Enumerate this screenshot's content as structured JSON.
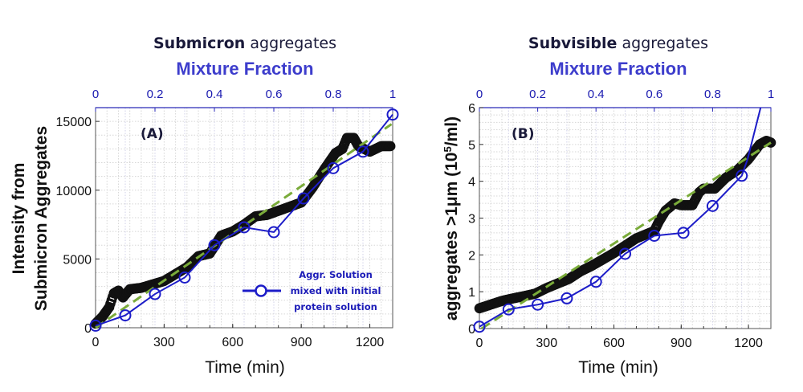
{
  "chart_data": [
    {
      "type": "line",
      "panel_label": "(A)",
      "title": "Submicron aggregates",
      "title_bold_part": "Submicron",
      "title_rest": "aggregates",
      "top_axis_label": "Mixture Fraction",
      "top_ticks": [
        "0",
        "0.2",
        "0.4",
        "0.6",
        "0.8",
        "1"
      ],
      "xlabel": "Time (min)",
      "ylabel_lines": [
        "Intensity from",
        "Submicron Aggregates"
      ],
      "xlim": [
        0,
        1300
      ],
      "ylim": [
        0,
        16000
      ],
      "top_xlim": [
        0,
        1
      ],
      "x_ticks": [
        "0",
        "300",
        "600",
        "900",
        "1200"
      ],
      "y_ticks": [
        "0",
        "5000",
        "10000",
        "15000"
      ],
      "grid": true,
      "legend_position": "bottom-right",
      "legend_lines": [
        "Aggr. Solution",
        "mixed with initial",
        "protein solution"
      ],
      "series": [
        {
          "axis": "bottom",
          "style": "black-circles",
          "color": "#111111",
          "x": [
            0,
            30,
            60,
            80,
            100,
            120,
            150,
            200,
            300,
            400,
            450,
            500,
            550,
            600,
            650,
            700,
            750,
            800,
            850,
            900,
            950,
            1000,
            1050,
            1080,
            1100,
            1130,
            1150,
            1200,
            1250,
            1290
          ],
          "y": [
            300,
            800,
            1500,
            2500,
            2700,
            2200,
            2800,
            2900,
            3400,
            4400,
            5200,
            5400,
            6700,
            7000,
            7500,
            8100,
            8200,
            8500,
            8800,
            9100,
            10200,
            11500,
            12700,
            13000,
            13800,
            13800,
            13200,
            12800,
            13200,
            13200
          ]
        },
        {
          "axis": "bottom",
          "style": "green-dashed-fit",
          "color": "#7aab3a",
          "x": [
            0,
            1295
          ],
          "y": [
            0,
            14800
          ]
        },
        {
          "name": "Aggr. Solution mixed with initial protein solution",
          "axis": "top",
          "style": "blue-line-open-circles",
          "color": "#1c1cc8",
          "x": [
            0,
            0.1,
            0.2,
            0.3,
            0.4,
            0.5,
            0.6,
            0.7,
            0.8,
            0.9,
            1.0
          ],
          "y": [
            150,
            900,
            2450,
            3650,
            6000,
            7300,
            6950,
            9400,
            11600,
            12800,
            15500
          ]
        }
      ]
    },
    {
      "type": "line",
      "panel_label": "(B)",
      "title": "Subvisible aggregates",
      "title_bold_part": "Subvisible",
      "title_rest": "aggregates",
      "top_axis_label": "Mixture Fraction",
      "top_ticks": [
        "0",
        "0.2",
        "0.4",
        "0.6",
        "0.8",
        "1"
      ],
      "xlabel": "Time (min)",
      "ylabel": "aggregates >1μm  (10^5/ml)",
      "ylabel_main": "aggregates >1μm  (10",
      "ylabel_sup": "5",
      "ylabel_end": "/ml)",
      "xlim": [
        0,
        1300
      ],
      "ylim": [
        0,
        6
      ],
      "top_xlim": [
        0,
        1
      ],
      "x_ticks": [
        "0",
        "300",
        "600",
        "900",
        "1200"
      ],
      "y_ticks": [
        "0",
        "1",
        "2",
        "3",
        "4",
        "5",
        "6"
      ],
      "grid": true,
      "series": [
        {
          "axis": "bottom",
          "style": "black-circles",
          "color": "#111111",
          "x": [
            0,
            50,
            100,
            150,
            200,
            250,
            300,
            400,
            450,
            500,
            600,
            650,
            700,
            780,
            800,
            830,
            870,
            900,
            950,
            980,
            1000,
            1050,
            1100,
            1150,
            1200,
            1250,
            1280,
            1300
          ],
          "y": [
            0.55,
            0.65,
            0.75,
            0.82,
            0.88,
            0.95,
            1.1,
            1.35,
            1.55,
            1.7,
            2.05,
            2.25,
            2.45,
            2.65,
            2.9,
            3.2,
            3.4,
            3.35,
            3.35,
            3.7,
            3.8,
            3.8,
            4.1,
            4.3,
            4.6,
            5.0,
            5.1,
            5.05
          ]
        },
        {
          "axis": "bottom",
          "style": "green-dashed-fit",
          "color": "#7aab3a",
          "x": [
            10,
            1300
          ],
          "y": [
            0,
            5.05
          ]
        },
        {
          "axis": "top",
          "style": "blue-line-open-circles",
          "color": "#1c1cc8",
          "x": [
            0,
            0.1,
            0.2,
            0.3,
            0.4,
            0.5,
            0.6,
            0.7,
            0.8,
            0.9,
            0.92,
            1.0
          ],
          "y": [
            0.05,
            0.52,
            0.65,
            0.82,
            1.27,
            2.03,
            2.52,
            2.6,
            3.33,
            4.15,
            4.6,
            7.1
          ]
        }
      ]
    }
  ]
}
